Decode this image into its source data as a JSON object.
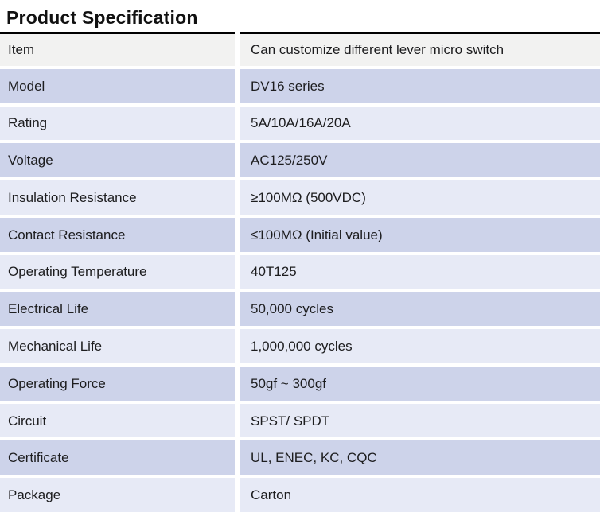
{
  "title": "Product Specification",
  "table": {
    "rows": [
      {
        "label": "Item",
        "value": "Can customize different lever micro switch"
      },
      {
        "label": "Model",
        "value": "DV16 series"
      },
      {
        "label": "Rating",
        "value": "5A/10A/16A/20A"
      },
      {
        "label": "Voltage",
        "value": "AC125/250V"
      },
      {
        "label": "Insulation Resistance",
        "value": "≥100MΩ (500VDC)"
      },
      {
        "label": "Contact Resistance",
        "value": "≤100MΩ (Initial value)"
      },
      {
        "label": "Operating Temperature",
        "value": "40T125"
      },
      {
        "label": "Electrical Life",
        "value": "50,000 cycles"
      },
      {
        "label": "Mechanical Life",
        "value": "1,000,000 cycles"
      },
      {
        "label": "Operating Force",
        "value": "50gf ~ 300gf"
      },
      {
        "label": "Circuit",
        "value": "SPST/ SPDT"
      },
      {
        "label": "Certificate",
        "value": "UL, ENEC, KC, CQC"
      },
      {
        "label": "Package",
        "value": "Carton"
      }
    ]
  },
  "colors": {
    "background": "#ffffff",
    "first_row_bg": "#f2f2f1",
    "row_alt_dark": "#cdd3ea",
    "row_alt_light": "#e7eaf6",
    "top_rule": "#000000",
    "text": "#1d1d1f"
  }
}
